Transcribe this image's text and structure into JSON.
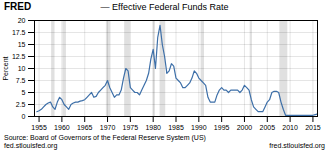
{
  "chart_data": {
    "type": "line",
    "title": "— Effective Federal Funds Rate",
    "ylabel": "Percent",
    "annotations": [
      "FRED",
      "Source: Board of Governors of the Federal Reserve System (US)\nfed.stlouisfed.org",
      "fred.stlouisfed.org"
    ],
    "color": "#3d6fa8",
    "grid": true,
    "xlim": [
      1954,
      2016
    ],
    "xticks": [
      1955,
      1960,
      1965,
      1970,
      1975,
      1980,
      1985,
      1990,
      1995,
      2000,
      2005,
      2010,
      2015
    ],
    "ylim": [
      0,
      20.0
    ],
    "yticks": [
      0.0,
      2.5,
      5.0,
      7.5,
      10.0,
      12.5,
      15.0,
      17.5,
      20.0
    ],
    "recessions": [
      [
        1957.75,
        1958.5
      ],
      [
        1960.25,
        1961.0
      ],
      [
        1969.75,
        1970.75
      ],
      [
        1973.75,
        1975.0
      ],
      [
        1980.0,
        1980.5
      ],
      [
        1981.5,
        1982.75
      ],
      [
        1990.5,
        1991.25
      ],
      [
        2001.25,
        2001.75
      ],
      [
        2007.75,
        2009.5
      ]
    ],
    "x": [
      1954.5,
      1955.0,
      1955.5,
      1956.0,
      1956.5,
      1957.0,
      1957.5,
      1958.0,
      1958.5,
      1959.0,
      1959.5,
      1960.0,
      1960.5,
      1961.0,
      1961.5,
      1962.0,
      1962.5,
      1963.0,
      1963.5,
      1964.0,
      1964.5,
      1965.0,
      1965.5,
      1966.0,
      1966.5,
      1967.0,
      1967.5,
      1968.0,
      1968.5,
      1969.0,
      1969.5,
      1970.0,
      1970.5,
      1971.0,
      1971.5,
      1972.0,
      1972.5,
      1973.0,
      1973.5,
      1974.0,
      1974.5,
      1975.0,
      1975.5,
      1976.0,
      1976.5,
      1977.0,
      1977.5,
      1978.0,
      1978.5,
      1979.0,
      1979.5,
      1980.0,
      1980.5,
      1981.0,
      1981.5,
      1982.0,
      1982.5,
      1983.0,
      1983.5,
      1984.0,
      1984.5,
      1985.0,
      1985.5,
      1986.0,
      1986.5,
      1987.0,
      1987.5,
      1988.0,
      1988.5,
      1989.0,
      1989.5,
      1990.0,
      1990.5,
      1991.0,
      1991.5,
      1992.0,
      1992.5,
      1993.0,
      1993.5,
      1994.0,
      1994.5,
      1995.0,
      1995.5,
      1996.0,
      1996.5,
      1997.0,
      1997.5,
      1998.0,
      1998.5,
      1999.0,
      1999.5,
      2000.0,
      2000.5,
      2001.0,
      2001.5,
      2002.0,
      2002.5,
      2003.0,
      2003.5,
      2004.0,
      2004.5,
      2005.0,
      2005.5,
      2006.0,
      2006.5,
      2007.0,
      2007.5,
      2008.0,
      2008.5,
      2009.0,
      2009.5,
      2010.0,
      2010.5,
      2011.0,
      2011.5,
      2012.0,
      2012.5,
      2013.0,
      2013.5,
      2014.0,
      2014.5,
      2015.0,
      2015.5,
      2016.0
    ],
    "values": [
      1.0,
      1.2,
      1.5,
      2.0,
      2.5,
      2.8,
      3.0,
      2.0,
      1.5,
      3.0,
      4.0,
      3.5,
      2.5,
      2.0,
      1.5,
      2.5,
      2.8,
      3.0,
      3.0,
      3.2,
      3.3,
      3.5,
      4.0,
      4.5,
      5.0,
      4.0,
      4.2,
      5.0,
      5.5,
      6.0,
      6.5,
      7.5,
      6.0,
      5.0,
      4.0,
      4.5,
      4.5,
      5.5,
      8.0,
      10.0,
      9.5,
      6.0,
      5.5,
      5.0,
      5.0,
      4.5,
      5.5,
      6.5,
      7.5,
      9.0,
      12.0,
      14.0,
      10.0,
      16.5,
      19.0,
      15.0,
      12.5,
      9.0,
      9.5,
      11.0,
      10.5,
      8.0,
      7.5,
      7.0,
      6.0,
      6.0,
      6.5,
      7.0,
      8.0,
      9.5,
      9.0,
      8.0,
      7.5,
      7.0,
      6.5,
      4.0,
      3.0,
      3.0,
      3.0,
      4.5,
      5.5,
      6.0,
      5.5,
      5.5,
      5.0,
      5.5,
      5.5,
      5.5,
      5.5,
      5.0,
      5.5,
      6.5,
      6.0,
      5.5,
      3.5,
      2.0,
      1.5,
      1.0,
      1.0,
      1.0,
      2.0,
      3.0,
      3.5,
      5.0,
      5.25,
      5.25,
      5.0,
      3.0,
      1.5,
      0.25,
      0.25,
      0.25,
      0.25,
      0.25,
      0.25,
      0.25,
      0.25,
      0.25,
      0.25,
      0.25,
      0.25,
      0.25,
      0.4,
      0.5
    ]
  }
}
